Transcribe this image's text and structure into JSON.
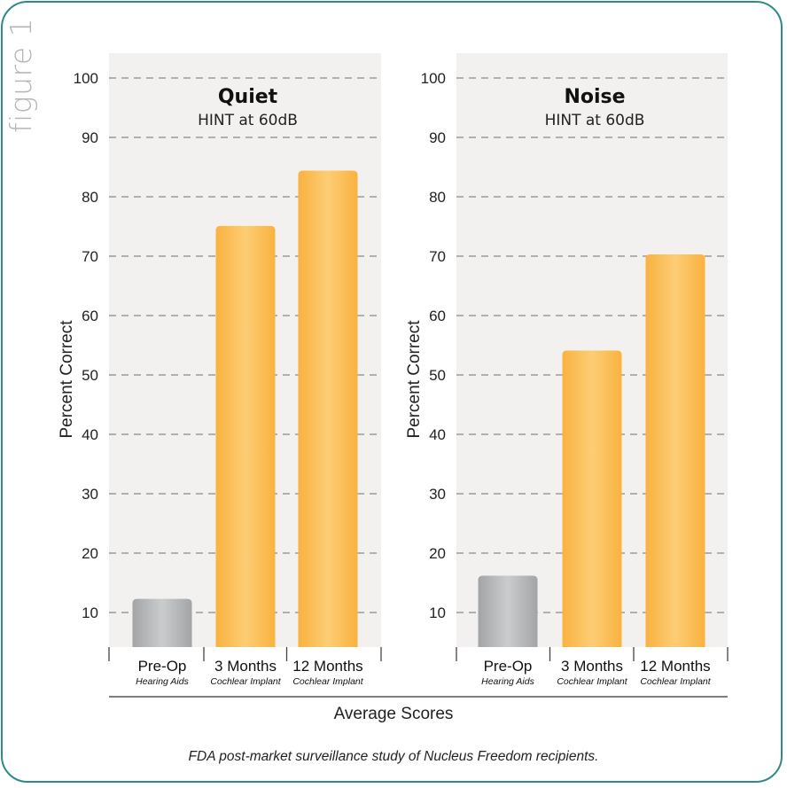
{
  "figure_label": "figure 1",
  "x_title": "Average Scores",
  "caption": "FDA post-market surveillance study of Nucleus Freedom recipients.",
  "colors": {
    "frame": "#2f8a86",
    "panel": "#f2f1f0",
    "gray_bar": "#b4b5b7",
    "orange_bar": "#fbbe5c",
    "grid": "#8a8a8a"
  },
  "chart_data": [
    {
      "type": "bar",
      "title": "Quiet",
      "subtitle": "HINT at 60dB",
      "ylabel": "Percent Correct",
      "ylim": [
        5,
        100
      ],
      "yticks": [
        10,
        20,
        30,
        40,
        50,
        60,
        70,
        80,
        90,
        100
      ],
      "grid": true,
      "categories": [
        "Pre-Op",
        "3 Months",
        "12 Months"
      ],
      "category_sublabels": [
        "Hearing Aids",
        "Cochlear Implant",
        "Cochlear Implant"
      ],
      "values": [
        12.3,
        75.1,
        84.4
      ],
      "bar_colors": [
        "gray",
        "orange",
        "orange"
      ]
    },
    {
      "type": "bar",
      "title": "Noise",
      "subtitle": "HINT at 60dB",
      "ylabel": "Percent Correct",
      "ylim": [
        5,
        100
      ],
      "yticks": [
        10,
        20,
        30,
        40,
        50,
        60,
        70,
        80,
        90,
        100
      ],
      "grid": true,
      "categories": [
        "Pre-Op",
        "3 Months",
        "12 Months"
      ],
      "category_sublabels": [
        "Hearing Aids",
        "Cochlear Implant",
        "Cochlear Implant"
      ],
      "values": [
        16.2,
        54.1,
        70.3
      ],
      "bar_colors": [
        "gray",
        "orange",
        "orange"
      ]
    }
  ]
}
